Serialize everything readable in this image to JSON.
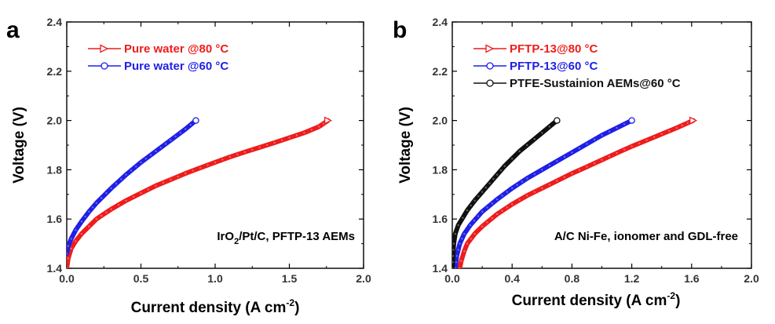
{
  "chart_data": [
    {
      "panel": "a",
      "type": "line",
      "xlabel": "Current density (A cm",
      "xlabel_sup": "-2",
      "xlabel_end": ")",
      "ylabel": "Voltage (V)",
      "xlim": [
        0.0,
        2.0
      ],
      "ylim": [
        1.4,
        2.4
      ],
      "xticks": [
        "0.0",
        "0.5",
        "1.0",
        "1.5",
        "2.0"
      ],
      "xtick_values": [
        0.0,
        0.5,
        1.0,
        1.5,
        2.0
      ],
      "yticks": [
        "1.4",
        "1.6",
        "1.8",
        "2.0",
        "2.2",
        "2.4"
      ],
      "ytick_values": [
        1.4,
        1.6,
        1.8,
        2.0,
        2.2,
        2.4
      ],
      "annotation": {
        "pre": "IrO",
        "sub": "2",
        "post": "/Pt/C, PFTP-13 AEMs"
      },
      "legend_position": "top-left",
      "series": [
        {
          "name": "Pure water @80 °C",
          "color": "#ee1c1c",
          "marker": "triangle-right",
          "x": [
            0.0,
            0.01,
            0.03,
            0.06,
            0.1,
            0.15,
            0.2,
            0.3,
            0.4,
            0.5,
            0.6,
            0.7,
            0.8,
            0.9,
            1.0,
            1.1,
            1.2,
            1.3,
            1.4,
            1.5,
            1.6,
            1.7,
            1.76
          ],
          "y": [
            1.4,
            1.44,
            1.48,
            1.51,
            1.54,
            1.57,
            1.6,
            1.64,
            1.675,
            1.705,
            1.735,
            1.76,
            1.785,
            1.808,
            1.83,
            1.852,
            1.872,
            1.891,
            1.91,
            1.93,
            1.95,
            1.975,
            2.0
          ]
        },
        {
          "name": "Pure water @60 °C",
          "color": "#1f1fe6",
          "marker": "circle",
          "x": [
            0.0,
            0.01,
            0.03,
            0.06,
            0.1,
            0.15,
            0.2,
            0.3,
            0.4,
            0.5,
            0.6,
            0.7,
            0.8,
            0.87
          ],
          "y": [
            1.46,
            1.49,
            1.52,
            1.555,
            1.59,
            1.63,
            1.665,
            1.725,
            1.78,
            1.83,
            1.875,
            1.92,
            1.965,
            2.0
          ]
        }
      ]
    },
    {
      "panel": "b",
      "type": "line",
      "xlabel": "Current density (A cm",
      "xlabel_sup": "-2",
      "xlabel_end": ")",
      "ylabel": "Voltage (V)",
      "xlim": [
        0.0,
        2.0
      ],
      "ylim": [
        1.4,
        2.4
      ],
      "xticks": [
        "0.0",
        "0.4",
        "0.8",
        "1.2",
        "1.6",
        "2.0"
      ],
      "xtick_values": [
        0.0,
        0.4,
        0.8,
        1.2,
        1.6,
        2.0
      ],
      "yticks": [
        "1.4",
        "1.6",
        "1.8",
        "2.0",
        "2.2",
        "2.4"
      ],
      "ytick_values": [
        1.4,
        1.6,
        1.8,
        2.0,
        2.2,
        2.4
      ],
      "annotation": {
        "pre": "A/C Ni-Fe, ionomer and GDL-free",
        "sub": "",
        "post": ""
      },
      "legend_position": "top-left",
      "series": [
        {
          "name": "PFTP-13@80 °C",
          "color": "#ee1c1c",
          "marker": "triangle-right",
          "x": [
            0.05,
            0.06,
            0.08,
            0.1,
            0.15,
            0.2,
            0.3,
            0.4,
            0.5,
            0.6,
            0.7,
            0.8,
            0.9,
            1.0,
            1.1,
            1.2,
            1.3,
            1.4,
            1.5,
            1.61
          ],
          "y": [
            1.4,
            1.43,
            1.47,
            1.5,
            1.54,
            1.57,
            1.62,
            1.66,
            1.695,
            1.725,
            1.755,
            1.785,
            1.812,
            1.84,
            1.868,
            1.895,
            1.92,
            1.945,
            1.97,
            2.0
          ]
        },
        {
          "name": "PFTP-13@60 °C",
          "color": "#1f1fe6",
          "marker": "circle",
          "x": [
            0.02,
            0.03,
            0.05,
            0.08,
            0.12,
            0.2,
            0.3,
            0.4,
            0.5,
            0.6,
            0.7,
            0.8,
            0.9,
            1.0,
            1.1,
            1.2
          ],
          "y": [
            1.4,
            1.45,
            1.5,
            1.54,
            1.575,
            1.63,
            1.68,
            1.725,
            1.765,
            1.8,
            1.835,
            1.87,
            1.905,
            1.94,
            1.97,
            2.0
          ]
        },
        {
          "name": "PTFE-Sustainion AEMs@60 °C",
          "color": "#111111",
          "marker": "circle",
          "x": [
            0.0,
            0.005,
            0.01,
            0.02,
            0.04,
            0.07,
            0.1,
            0.15,
            0.2,
            0.25,
            0.3,
            0.35,
            0.4,
            0.45,
            0.5,
            0.55,
            0.6,
            0.65,
            0.7
          ],
          "y": [
            1.4,
            1.45,
            1.5,
            1.54,
            1.575,
            1.605,
            1.635,
            1.675,
            1.71,
            1.745,
            1.78,
            1.815,
            1.845,
            1.875,
            1.9,
            1.925,
            1.95,
            1.975,
            2.0
          ]
        }
      ]
    }
  ]
}
